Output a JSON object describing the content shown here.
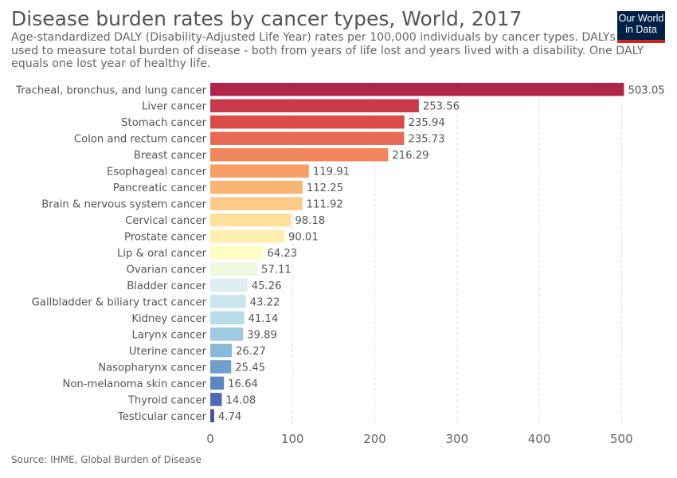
{
  "title": "Disease burden rates by cancer types, World, 2017",
  "subtitle": "Age-standardized DALY (Disability-Adjusted Life Year) rates per 100,000 individuals by cancer types. DALYs are used to measure total burden of disease - both from years of life lost and years lived with a disability. One DALY equals one lost year of healthy life.",
  "logo": {
    "line1": "Our World",
    "line2": "in Data"
  },
  "source": "Source: IHME, Global Burden of Disease",
  "chart_data": {
    "type": "bar",
    "orientation": "horizontal",
    "categories": [
      "Tracheal, bronchus, and lung cancer",
      "Liver cancer",
      "Stomach cancer",
      "Colon and rectum cancer",
      "Breast cancer",
      "Esophageal cancer",
      "Pancreatic cancer",
      "Brain & nervous system cancer",
      "Cervical cancer",
      "Prostate cancer",
      "Lip & oral cancer",
      "Ovarian cancer",
      "Bladder cancer",
      "Gallbladder & biliary tract cancer",
      "Kidney cancer",
      "Larynx cancer",
      "Uterine cancer",
      "Nasopharynx cancer",
      "Non-melanoma skin cancer",
      "Thyroid cancer",
      "Testicular cancer"
    ],
    "values": [
      503.05,
      253.56,
      235.94,
      235.73,
      216.29,
      119.91,
      112.25,
      111.92,
      98.18,
      90.01,
      64.23,
      57.11,
      45.26,
      43.22,
      41.14,
      39.89,
      26.27,
      25.45,
      16.64,
      14.08,
      4.74
    ],
    "value_labels": [
      "503.05",
      "253.56",
      "235.94",
      "235.73",
      "216.29",
      "119.91",
      "112.25",
      "111.92",
      "98.18",
      "90.01",
      "64.23",
      "57.11",
      "45.26",
      "43.22",
      "41.14",
      "39.89",
      "26.27",
      "25.45",
      "16.64",
      "14.08",
      "4.74"
    ],
    "colors": [
      "#b2254a",
      "#c83a49",
      "#dd4b48",
      "#e86a55",
      "#f1865c",
      "#f89f68",
      "#fbb573",
      "#fdca87",
      "#fee09a",
      "#fff0ad",
      "#fefec2",
      "#eef8dd",
      "#ddeef3",
      "#cce6f0",
      "#b6dde9",
      "#a0cbe2",
      "#88b9da",
      "#709fcc",
      "#5c86c0",
      "#5068b0",
      "#4a4ea3"
    ],
    "xticks": [
      0,
      100,
      200,
      300,
      400,
      500
    ],
    "xtick_labels": [
      "0",
      "100",
      "200",
      "300",
      "400",
      "500"
    ],
    "xlim": [
      0,
      503.05
    ],
    "grid": "vertical dashed"
  }
}
